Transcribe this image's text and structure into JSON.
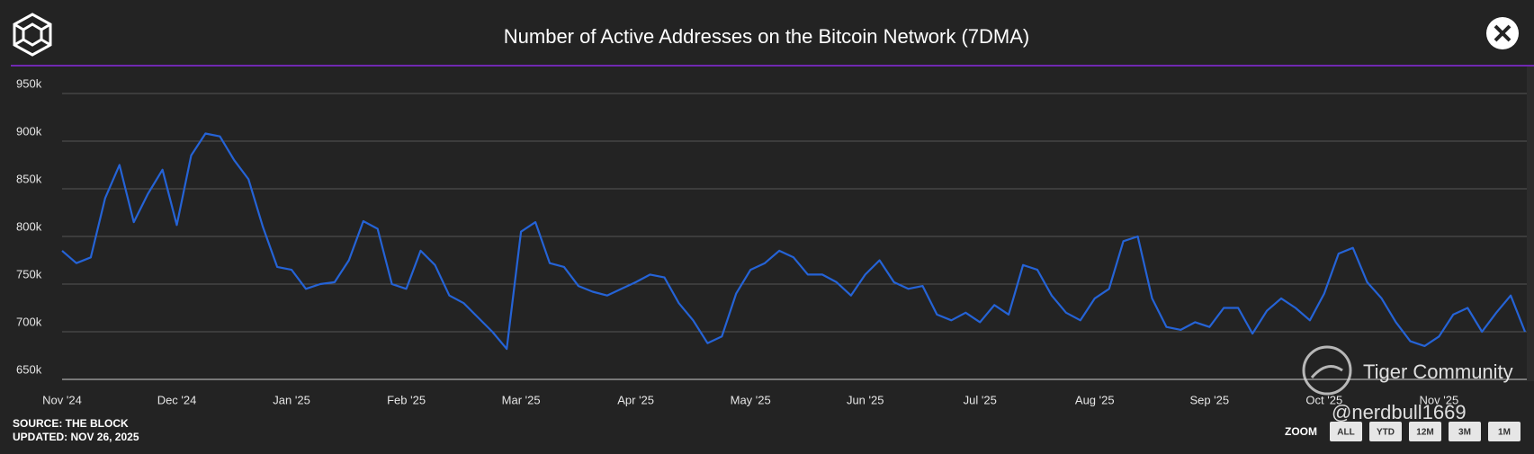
{
  "chart_data": {
    "type": "line",
    "title": "Number of Active Addresses on the Bitcoin Network (7DMA)",
    "source": "SOURCE: THE BLOCK",
    "updated": "UPDATED: NOV 26, 2025",
    "zoom_label": "ZOOM",
    "zoom_buttons": [
      "ALL",
      "YTD",
      "12M",
      "3M",
      "1M"
    ],
    "watermark": [
      "Tiger Community",
      "@nerdbull1669"
    ],
    "categories": [
      "Nov '24",
      null,
      null,
      null,
      null,
      null,
      null,
      null,
      "Dec '24",
      null,
      null,
      null,
      null,
      null,
      null,
      null,
      "Jan '25",
      null,
      null,
      null,
      null,
      null,
      null,
      null,
      "Feb '25",
      null,
      null,
      null,
      null,
      null,
      null,
      null,
      "Mar '25",
      null,
      null,
      null,
      null,
      null,
      null,
      null,
      "Apr '25",
      null,
      null,
      null,
      null,
      null,
      null,
      null,
      "May '25",
      null,
      null,
      null,
      null,
      null,
      null,
      null,
      "Jun '25",
      null,
      null,
      null,
      null,
      null,
      null,
      null,
      "Jul '25",
      null,
      null,
      null,
      null,
      null,
      null,
      null,
      "Aug '25",
      null,
      null,
      null,
      null,
      null,
      null,
      null,
      "Sep '25",
      null,
      null,
      null,
      null,
      null,
      null,
      null,
      "Oct '25",
      null,
      null,
      null,
      null,
      null,
      null,
      null,
      "Nov '25",
      null,
      null,
      null,
      null,
      null,
      null
    ],
    "series": [
      {
        "name": "Active Addresses (7DMA)",
        "color": "#2563d6",
        "values": [
          785000,
          772000,
          778000,
          840000,
          875000,
          815000,
          845000,
          870000,
          812000,
          885000,
          908000,
          905000,
          880000,
          860000,
          810000,
          768000,
          765000,
          745000,
          750000,
          752000,
          775000,
          816000,
          808000,
          750000,
          745000,
          785000,
          770000,
          738000,
          730000,
          715000,
          700000,
          682000,
          805000,
          815000,
          772000,
          768000,
          748000,
          742000,
          738000,
          745000,
          752000,
          760000,
          757000,
          730000,
          712000,
          688000,
          695000,
          740000,
          765000,
          772000,
          785000,
          778000,
          760000,
          760000,
          752000,
          738000,
          760000,
          775000,
          752000,
          745000,
          748000,
          718000,
          712000,
          720000,
          710000,
          728000,
          718000,
          770000,
          765000,
          738000,
          720000,
          712000,
          735000,
          745000,
          795000,
          800000,
          735000,
          705000,
          702000,
          710000,
          705000,
          725000,
          725000,
          698000,
          722000,
          735000,
          725000,
          712000,
          740000,
          782000,
          788000,
          752000,
          735000,
          710000,
          690000,
          685000,
          695000,
          718000,
          725000,
          700000,
          720000,
          738000,
          700000
        ]
      }
    ],
    "ylim": [
      650000,
      950000
    ],
    "yticks": [
      {
        "value": 650000,
        "label": "650k"
      },
      {
        "value": 700000,
        "label": "700k"
      },
      {
        "value": 750000,
        "label": "750k"
      },
      {
        "value": 800000,
        "label": "800k"
      },
      {
        "value": 850000,
        "label": "850k"
      },
      {
        "value": 900000,
        "label": "900k"
      },
      {
        "value": 950000,
        "label": "950k"
      }
    ],
    "grid": true
  }
}
